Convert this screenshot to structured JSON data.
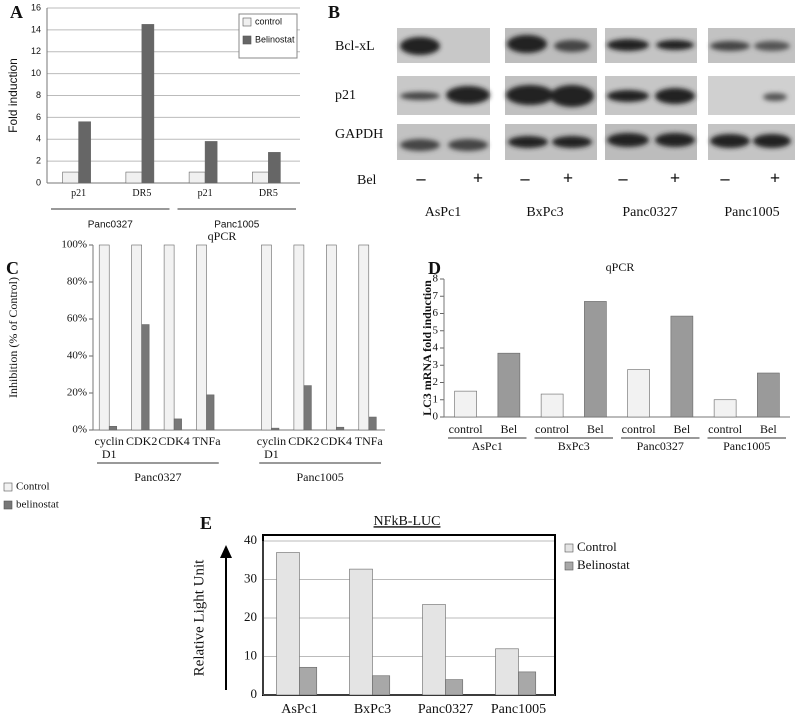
{
  "panels": [
    "A",
    "B",
    "C",
    "D",
    "E"
  ],
  "blot": {
    "rows": [
      "Bcl-xL",
      "p21",
      "GAPDH"
    ],
    "treatment": "Bel",
    "signs": [
      "–",
      "+"
    ],
    "lines": [
      "AsPc1",
      "BxPc3",
      "Panc0327",
      "Panc1005"
    ]
  },
  "chart_data": [
    {
      "type": "bar",
      "ylabel": "Fold induction",
      "categories": [
        "p21",
        "DR5",
        "p21",
        "DR5"
      ],
      "groups": [
        "Panc0327",
        "Panc1005"
      ],
      "series": [
        {
          "name": "control",
          "color": "#f0f0f0",
          "values": [
            1,
            1,
            1,
            1
          ]
        },
        {
          "name": "Belinostat",
          "color": "#666666",
          "values": [
            5.6,
            14.5,
            3.8,
            2.8
          ]
        }
      ],
      "ylim": [
        0,
        16
      ],
      "yticks": [
        0,
        2,
        4,
        6,
        8,
        10,
        12,
        14,
        16
      ],
      "grid": true
    },
    {
      "type": "bar",
      "title": "qPCR",
      "ylabel": "Inhibition (% of Control)",
      "categories": [
        "cyclin D1",
        "CDK2",
        "CDK4",
        "TNFa",
        "cyclin D1",
        "CDK2",
        "CDK4",
        "TNFa"
      ],
      "groups": [
        "Panc0327",
        "Panc1005"
      ],
      "series": [
        {
          "name": "Control",
          "color": "#f2f2f2",
          "values": [
            100,
            100,
            100,
            100,
            100,
            100,
            100,
            100
          ]
        },
        {
          "name": "belinostat",
          "color": "#777777",
          "values": [
            2,
            57,
            6,
            19,
            1,
            24,
            1.5,
            7
          ]
        }
      ],
      "ylim": [
        0,
        100
      ],
      "yticks": [
        {
          "value": 0,
          "label": "0%"
        },
        {
          "value": 20,
          "label": "20%"
        },
        {
          "value": 40,
          "label": "40%"
        },
        {
          "value": 60,
          "label": "60%"
        },
        {
          "value": 80,
          "label": "80%"
        },
        {
          "value": 100,
          "label": "100%"
        }
      ],
      "grid": false
    },
    {
      "type": "bar",
      "title": "qPCR",
      "ylabel": "LC3  mRNA fold induction",
      "categories": [
        "control",
        "Bel",
        "control",
        "Bel",
        "control",
        "Bel",
        "control",
        "Bel"
      ],
      "groups": [
        "AsPc1",
        "BxPc3",
        "Panc0327",
        "Panc1005"
      ],
      "values": [
        1.5,
        3.7,
        1.33,
        6.7,
        2.75,
        5.85,
        1.0,
        2.55
      ],
      "colors": [
        "#f2f2f2",
        "#9a9a9a",
        "#f2f2f2",
        "#9a9a9a",
        "#f2f2f2",
        "#9a9a9a",
        "#f2f2f2",
        "#9a9a9a"
      ],
      "ylim": [
        0,
        8
      ],
      "yticks": [
        0,
        1,
        2,
        3,
        4,
        5,
        6,
        7,
        8
      ],
      "grid": false
    },
    {
      "type": "bar",
      "title": "NFkB-LUC",
      "ylabel": "Relative Light Unit",
      "categories": [
        "AsPc1",
        "BxPc3",
        "Panc0327",
        "Panc1005"
      ],
      "series": [
        {
          "name": "Control",
          "color": "#e4e4e4",
          "values": [
            37,
            32.7,
            23.5,
            12
          ]
        },
        {
          "name": "Belinostat",
          "color": "#a8a8a8",
          "values": [
            7.2,
            5,
            4,
            6
          ]
        }
      ],
      "ylim": [
        0,
        40
      ],
      "yticks": [
        0,
        10,
        20,
        30,
        40
      ],
      "grid": true
    }
  ]
}
